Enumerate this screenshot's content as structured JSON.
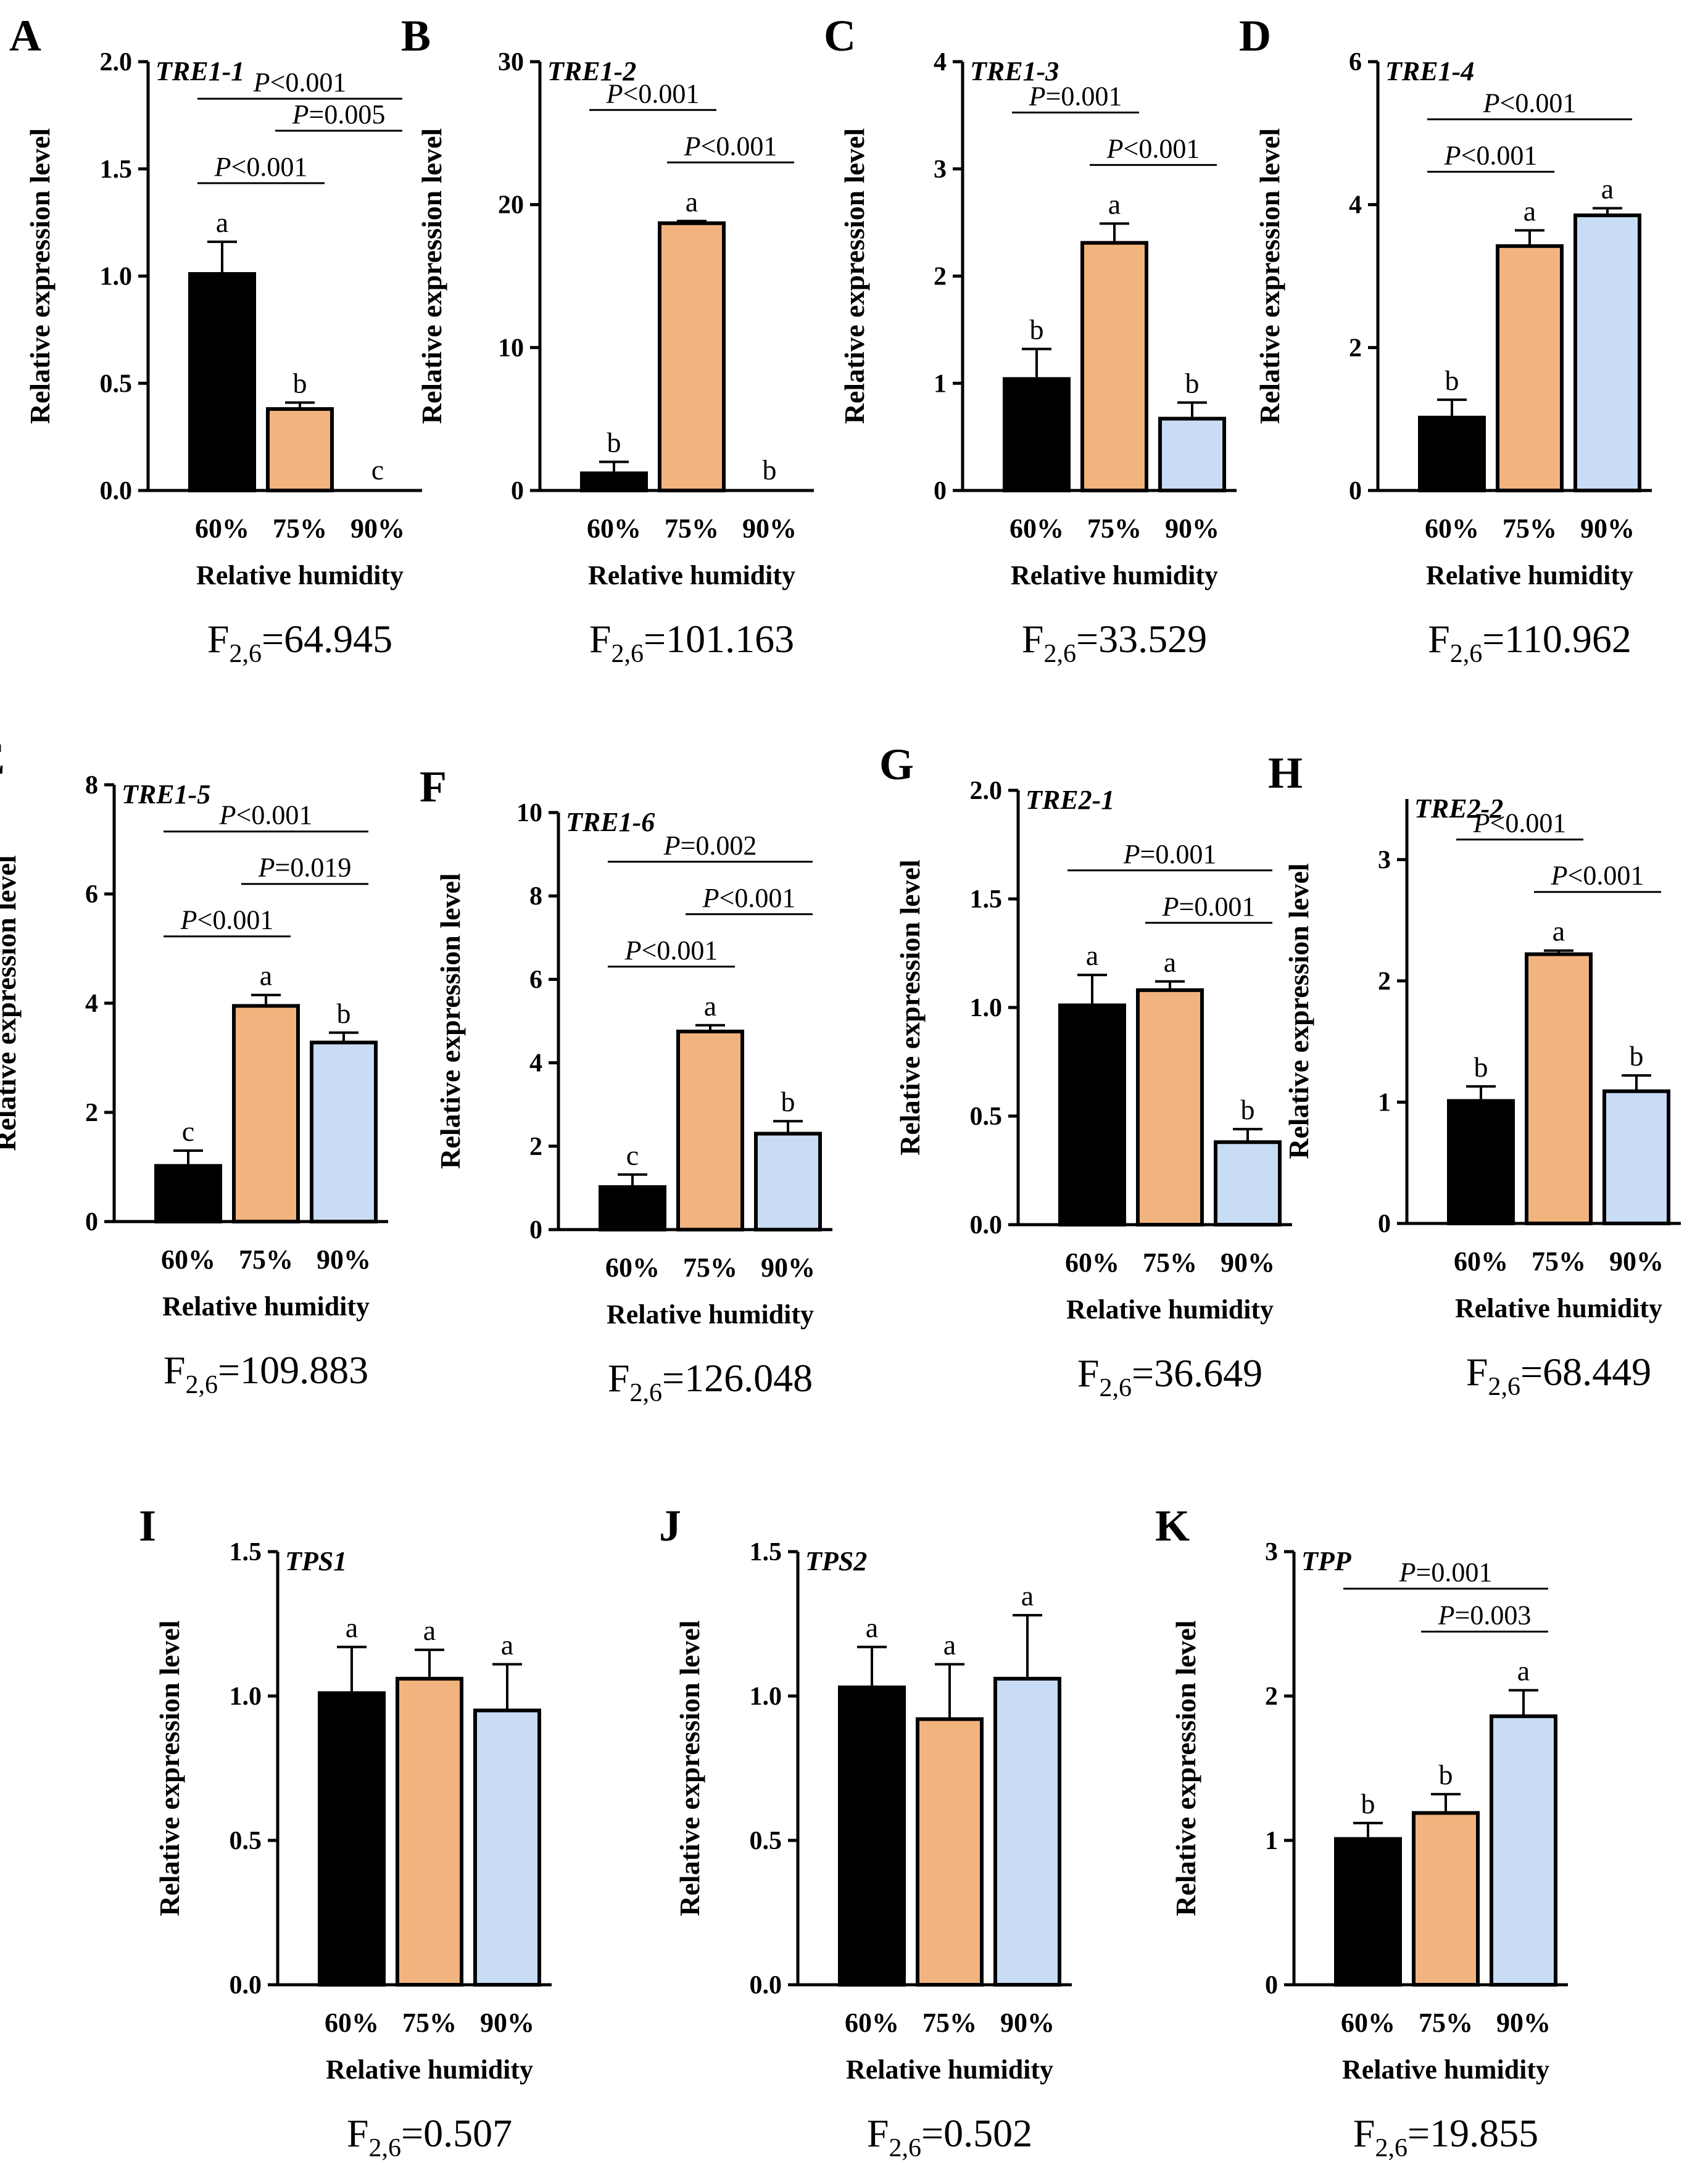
{
  "colors": {
    "c60": "#000000",
    "c75": "#f2b47e",
    "c90": "#c9dcf5",
    "axis": "#000000"
  },
  "chart_data": [
    {
      "type": "bar",
      "panel": "A",
      "title": "TRE1-1",
      "categories": [
        "60%",
        "75%",
        "90%"
      ],
      "values": [
        1.01,
        0.38,
        0.0
      ],
      "errors": [
        0.15,
        0.03,
        0.0
      ],
      "letters": [
        "a",
        "b",
        "c"
      ],
      "ylim": [
        0,
        2.0
      ],
      "yticks": [
        "0.0",
        "0.5",
        "1.0",
        "1.5",
        "2.0"
      ],
      "ylabel": "Relative expression level",
      "xlabel": "Relative humidity",
      "f_main": "F",
      "f_sub": "2,6",
      "f_value": "=64.945",
      "comparisons": [
        {
          "from": 0,
          "to": 2,
          "p": "P",
          "label": "<0.001"
        },
        {
          "from": 0,
          "to": 1,
          "p": "P",
          "label": "<0.001"
        },
        {
          "from": 1,
          "to": 2,
          "p": "P",
          "label": "=0.005"
        }
      ]
    },
    {
      "type": "bar",
      "panel": "B",
      "title": "TRE1-2",
      "categories": [
        "60%",
        "75%",
        "90%"
      ],
      "values": [
        1.2,
        18.7,
        0.0
      ],
      "errors": [
        0.8,
        0.15,
        0.0
      ],
      "letters": [
        "b",
        "a",
        "b"
      ],
      "ylim": [
        0,
        30
      ],
      "yticks": [
        "0",
        "10",
        "20",
        "30"
      ],
      "ylabel": "Relative expression level",
      "xlabel": "Relative humidity",
      "f_main": "F",
      "f_sub": "2,6",
      "f_value": "=101.163",
      "comparisons": [
        {
          "from": 1,
          "to": 2,
          "p": "P",
          "label": "<0.001"
        },
        {
          "from": 0,
          "to": 1,
          "p": "P",
          "label": "<0.001"
        }
      ]
    },
    {
      "type": "bar",
      "panel": "C",
      "title": "TRE1-3",
      "categories": [
        "60%",
        "75%",
        "90%"
      ],
      "values": [
        1.04,
        2.31,
        0.67
      ],
      "errors": [
        0.28,
        0.18,
        0.15
      ],
      "letters": [
        "b",
        "a",
        "b"
      ],
      "ylim": [
        0,
        4
      ],
      "yticks": [
        "0",
        "1",
        "2",
        "3",
        "4"
      ],
      "ylabel": "Relative expression level",
      "xlabel": "Relative humidity",
      "f_main": "F",
      "f_sub": "2,6",
      "f_value": "=33.529",
      "comparisons": [
        {
          "from": 1,
          "to": 2,
          "p": "P",
          "label": "<0.001"
        },
        {
          "from": 0,
          "to": 1,
          "p": "P",
          "label": "=0.001"
        }
      ]
    },
    {
      "type": "bar",
      "panel": "D",
      "title": "TRE1-4",
      "categories": [
        "60%",
        "75%",
        "90%"
      ],
      "values": [
        1.02,
        3.42,
        3.85
      ],
      "errors": [
        0.25,
        0.22,
        0.1
      ],
      "letters": [
        "b",
        "a",
        "a"
      ],
      "ylim": [
        0,
        6
      ],
      "yticks": [
        "0",
        "2",
        "4",
        "6"
      ],
      "ylabel": "Relative expression level",
      "xlabel": "Relative humidity",
      "f_main": "F",
      "f_sub": "2,6",
      "f_value": "=110.962",
      "comparisons": [
        {
          "from": 0,
          "to": 2,
          "p": "P",
          "label": "<0.001"
        },
        {
          "from": 0,
          "to": 1,
          "p": "P",
          "label": "<0.001"
        }
      ]
    },
    {
      "type": "bar",
      "panel": "E",
      "title": "TRE1-5",
      "categories": [
        "60%",
        "75%",
        "90%"
      ],
      "values": [
        1.02,
        3.95,
        3.28
      ],
      "errors": [
        0.28,
        0.2,
        0.18
      ],
      "letters": [
        "c",
        "a",
        "b"
      ],
      "ylim": [
        0,
        8
      ],
      "yticks": [
        "0",
        "2",
        "4",
        "6",
        "8"
      ],
      "ylabel": "Relative expression level",
      "xlabel": "Relative humidity",
      "f_main": "F",
      "f_sub": "2,6",
      "f_value": "=109.883",
      "comparisons": [
        {
          "from": 0,
          "to": 2,
          "p": "P",
          "label": "<0.001"
        },
        {
          "from": 0,
          "to": 1,
          "p": "P",
          "label": "<0.001"
        },
        {
          "from": 1,
          "to": 2,
          "p": "P",
          "label": "=0.019"
        }
      ]
    },
    {
      "type": "bar",
      "panel": "F",
      "title": "TRE1-6",
      "categories": [
        "60%",
        "75%",
        "90%"
      ],
      "values": [
        1.02,
        4.75,
        2.3
      ],
      "errors": [
        0.3,
        0.15,
        0.3
      ],
      "letters": [
        "c",
        "a",
        "b"
      ],
      "ylim": [
        0,
        10
      ],
      "yticks": [
        "0",
        "2",
        "4",
        "6",
        "8",
        "10"
      ],
      "ylabel": "Relative expression level",
      "xlabel": "Relative humidity",
      "f_main": "F",
      "f_sub": "2,6",
      "f_value": "=126.048",
      "comparisons": [
        {
          "from": 0,
          "to": 2,
          "p": "P",
          "label": "=0.002"
        },
        {
          "from": 0,
          "to": 1,
          "p": "P",
          "label": "<0.001"
        },
        {
          "from": 1,
          "to": 2,
          "p": "P",
          "label": "<0.001"
        }
      ]
    },
    {
      "type": "bar",
      "panel": "G",
      "title": "TRE2-1",
      "categories": [
        "60%",
        "75%",
        "90%"
      ],
      "values": [
        1.01,
        1.08,
        0.38
      ],
      "errors": [
        0.14,
        0.04,
        0.06
      ],
      "letters": [
        "a",
        "a",
        "b"
      ],
      "ylim": [
        0,
        2.0
      ],
      "yticks": [
        "0.0",
        "0.5",
        "1.0",
        "1.5",
        "2.0"
      ],
      "ylabel": "Relative expression level",
      "xlabel": "Relative humidity",
      "f_main": "F",
      "f_sub": "2,6",
      "f_value": "=36.649",
      "comparisons": [
        {
          "from": 0,
          "to": 2,
          "p": "P",
          "label": "=0.001"
        },
        {
          "from": 1,
          "to": 2,
          "p": "P",
          "label": "=0.001"
        }
      ]
    },
    {
      "type": "bar",
      "panel": "H",
      "title": "TRE2-2",
      "categories": [
        "60%",
        "75%",
        "90%"
      ],
      "values": [
        1.01,
        2.22,
        1.09
      ],
      "errors": [
        0.12,
        0.03,
        0.13
      ],
      "letters": [
        "b",
        "a",
        "b"
      ],
      "ylim": [
        0,
        3.5
      ],
      "yticks": [
        "0",
        "1",
        "2",
        "3"
      ],
      "ylabel": "Relative expression level",
      "xlabel": "Relative humidity",
      "f_main": "F",
      "f_sub": "2,6",
      "f_value": "=68.449",
      "comparisons": [
        {
          "from": 1,
          "to": 2,
          "p": "P",
          "label": "<0.001"
        },
        {
          "from": 0,
          "to": 1,
          "p": "P",
          "label": "<0.001"
        }
      ]
    },
    {
      "type": "bar",
      "panel": "I",
      "title": "TPS1",
      "categories": [
        "60%",
        "75%",
        "90%"
      ],
      "values": [
        1.01,
        1.06,
        0.95
      ],
      "errors": [
        0.16,
        0.1,
        0.16
      ],
      "letters": [
        "a",
        "a",
        "a"
      ],
      "ylim": [
        0,
        1.5
      ],
      "yticks": [
        "0.0",
        "0.5",
        "1.0",
        "1.5"
      ],
      "ylabel": "Relative expression level",
      "xlabel": "Relative humidity",
      "f_main": "F",
      "f_sub": "2,6",
      "f_value": "=0.507",
      "comparisons": []
    },
    {
      "type": "bar",
      "panel": "J",
      "title": "TPS2",
      "categories": [
        "60%",
        "75%",
        "90%"
      ],
      "values": [
        1.03,
        0.92,
        1.06
      ],
      "errors": [
        0.14,
        0.19,
        0.22
      ],
      "letters": [
        "a",
        "a",
        "a"
      ],
      "ylim": [
        0,
        1.5
      ],
      "yticks": [
        "0.0",
        "0.5",
        "1.0",
        "1.5"
      ],
      "ylabel": "Relative expression level",
      "xlabel": "Relative humidity",
      "f_main": "F",
      "f_sub": "2,6",
      "f_value": "=0.502",
      "comparisons": []
    },
    {
      "type": "bar",
      "panel": "K",
      "title": "TPP",
      "categories": [
        "60%",
        "75%",
        "90%"
      ],
      "values": [
        1.01,
        1.19,
        1.86
      ],
      "errors": [
        0.11,
        0.13,
        0.18
      ],
      "letters": [
        "b",
        "b",
        "a"
      ],
      "ylim": [
        0,
        3
      ],
      "yticks": [
        "0",
        "1",
        "2",
        "3"
      ],
      "ylabel": "Relative expression level",
      "xlabel": "Relative humidity",
      "f_main": "F",
      "f_sub": "2,6",
      "f_value": "=19.855",
      "comparisons": [
        {
          "from": 0,
          "to": 2,
          "p": "P",
          "label": "=0.001"
        },
        {
          "from": 1,
          "to": 2,
          "p": "P",
          "label": "=0.003"
        }
      ]
    }
  ]
}
